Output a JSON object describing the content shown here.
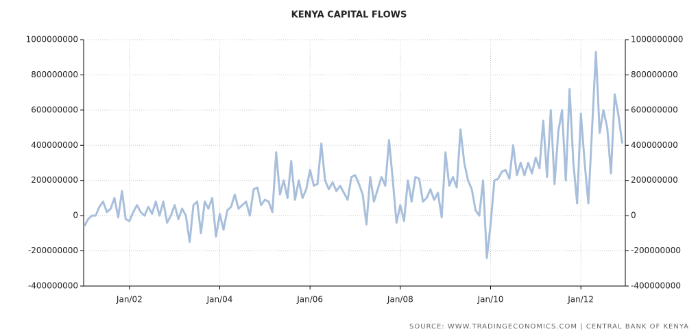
{
  "chart_data": {
    "type": "line",
    "title": "KENYA CAPITAL FLOWS",
    "source": "SOURCE: WWW.TRADINGECONOMICS.COM | CENTRAL BANK OF KENYA",
    "x": [
      "2001-01",
      "2001-02",
      "2001-03",
      "2001-04",
      "2001-05",
      "2001-06",
      "2001-07",
      "2001-08",
      "2001-09",
      "2001-10",
      "2001-11",
      "2001-12",
      "2002-01",
      "2002-02",
      "2002-03",
      "2002-04",
      "2002-05",
      "2002-06",
      "2002-07",
      "2002-08",
      "2002-09",
      "2002-10",
      "2002-11",
      "2002-12",
      "2003-01",
      "2003-02",
      "2003-03",
      "2003-04",
      "2003-05",
      "2003-06",
      "2003-07",
      "2003-08",
      "2003-09",
      "2003-10",
      "2003-11",
      "2003-12",
      "2004-01",
      "2004-02",
      "2004-03",
      "2004-04",
      "2004-05",
      "2004-06",
      "2004-07",
      "2004-08",
      "2004-09",
      "2004-10",
      "2004-11",
      "2004-12",
      "2005-01",
      "2005-02",
      "2005-03",
      "2005-04",
      "2005-05",
      "2005-06",
      "2005-07",
      "2005-08",
      "2005-09",
      "2005-10",
      "2005-11",
      "2005-12",
      "2006-01",
      "2006-02",
      "2006-03",
      "2006-04",
      "2006-05",
      "2006-06",
      "2006-07",
      "2006-08",
      "2006-09",
      "2006-10",
      "2006-11",
      "2006-12",
      "2007-01",
      "2007-02",
      "2007-03",
      "2007-04",
      "2007-05",
      "2007-06",
      "2007-07",
      "2007-08",
      "2007-09",
      "2007-10",
      "2007-11",
      "2007-12",
      "2008-01",
      "2008-02",
      "2008-03",
      "2008-04",
      "2008-05",
      "2008-06",
      "2008-07",
      "2008-08",
      "2008-09",
      "2008-10",
      "2008-11",
      "2008-12",
      "2009-01",
      "2009-02",
      "2009-03",
      "2009-04",
      "2009-05",
      "2009-06",
      "2009-07",
      "2009-08",
      "2009-09",
      "2009-10",
      "2009-11",
      "2009-12",
      "2010-01",
      "2010-02",
      "2010-03",
      "2010-04",
      "2010-05",
      "2010-06",
      "2010-07",
      "2010-08",
      "2010-09",
      "2010-10",
      "2010-11",
      "2010-12",
      "2011-01",
      "2011-02",
      "2011-03",
      "2011-04",
      "2011-05",
      "2011-06",
      "2011-07",
      "2011-08",
      "2011-09",
      "2011-10",
      "2011-11",
      "2011-12",
      "2012-01",
      "2012-02",
      "2012-03",
      "2012-04",
      "2012-05",
      "2012-06",
      "2012-07",
      "2012-08",
      "2012-09",
      "2012-10",
      "2012-11",
      "2012-12"
    ],
    "series": [
      {
        "color": "#a8bfdc",
        "values": [
          -60000000,
          -20000000,
          0,
          0,
          50000000,
          80000000,
          20000000,
          40000000,
          100000000,
          -10000000,
          140000000,
          -20000000,
          -30000000,
          20000000,
          60000000,
          20000000,
          0,
          50000000,
          10000000,
          80000000,
          0,
          80000000,
          -40000000,
          0,
          60000000,
          -20000000,
          40000000,
          0,
          -150000000,
          60000000,
          80000000,
          -100000000,
          80000000,
          40000000,
          100000000,
          -120000000,
          10000000,
          -80000000,
          30000000,
          50000000,
          120000000,
          40000000,
          60000000,
          80000000,
          0,
          150000000,
          160000000,
          60000000,
          90000000,
          80000000,
          20000000,
          360000000,
          120000000,
          200000000,
          100000000,
          310000000,
          90000000,
          200000000,
          100000000,
          150000000,
          260000000,
          170000000,
          180000000,
          410000000,
          200000000,
          150000000,
          190000000,
          140000000,
          170000000,
          130000000,
          90000000,
          220000000,
          230000000,
          180000000,
          120000000,
          -50000000,
          220000000,
          80000000,
          150000000,
          220000000,
          170000000,
          430000000,
          200000000,
          -40000000,
          60000000,
          -30000000,
          200000000,
          80000000,
          220000000,
          210000000,
          80000000,
          100000000,
          150000000,
          90000000,
          130000000,
          -10000000,
          360000000,
          170000000,
          220000000,
          160000000,
          490000000,
          300000000,
          200000000,
          150000000,
          30000000,
          0,
          200000000,
          -240000000,
          -50000000,
          200000000,
          210000000,
          250000000,
          260000000,
          210000000,
          400000000,
          230000000,
          300000000,
          230000000,
          300000000,
          240000000,
          330000000,
          270000000,
          540000000,
          220000000,
          600000000,
          180000000,
          480000000,
          600000000,
          200000000,
          720000000,
          300000000,
          70000000,
          580000000,
          300000000,
          70000000,
          500000000,
          930000000,
          470000000,
          600000000,
          500000000,
          240000000,
          690000000,
          570000000,
          410000000
        ]
      }
    ],
    "ylim": [
      -400000000,
      1000000000
    ],
    "yticks": [
      -400000000,
      -200000000,
      0,
      200000000,
      400000000,
      600000000,
      800000000,
      1000000000
    ],
    "xticks": [
      {
        "value": "2002-01",
        "label": "Jan/02"
      },
      {
        "value": "2004-01",
        "label": "Jan/04"
      },
      {
        "value": "2006-01",
        "label": "Jan/06"
      },
      {
        "value": "2008-01",
        "label": "Jan/08"
      },
      {
        "value": "2010-01",
        "label": "Jan/10"
      },
      {
        "value": "2012-01",
        "label": "Jan/12"
      }
    ],
    "grid": true
  }
}
